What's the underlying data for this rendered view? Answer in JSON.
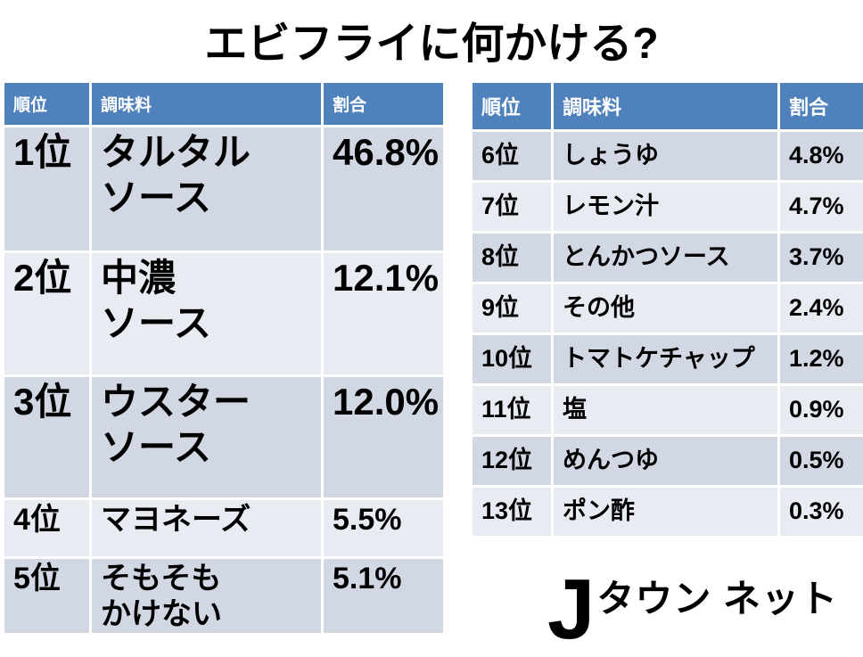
{
  "title": "エビフライに何かける?",
  "colors": {
    "header_bg": "#4f81bd",
    "header_text": "#ffffff",
    "row_dark": "#d2d7e4",
    "row_light": "#e8ebf2",
    "text": "#000000",
    "background": "#ffffff"
  },
  "table_left": {
    "headers": [
      "順位",
      "調味料",
      "割合"
    ],
    "rows": [
      {
        "rank": "1位",
        "item": "タルタル\nソース",
        "pct": "46.8%"
      },
      {
        "rank": "2位",
        "item": "中濃\nソース",
        "pct": "12.1%"
      },
      {
        "rank": "3位",
        "item": "ウスター\nソース",
        "pct": "12.0%"
      },
      {
        "rank": "4位",
        "item": "マヨネーズ",
        "pct": "5.5%"
      },
      {
        "rank": "5位",
        "item": "そもそも\nかけない",
        "pct": "5.1%"
      }
    ]
  },
  "table_right": {
    "headers": [
      "順位",
      "調味料",
      "割合"
    ],
    "rows": [
      {
        "rank": "6位",
        "item": "しょうゆ",
        "pct": "4.8%"
      },
      {
        "rank": "7位",
        "item": "レモン汁",
        "pct": "4.7%"
      },
      {
        "rank": "8位",
        "item": "とんかつソース",
        "pct": "3.7%"
      },
      {
        "rank": "9位",
        "item": "その他",
        "pct": "2.4%"
      },
      {
        "rank": "10位",
        "item": "トマトケチャップ",
        "pct": "1.2%"
      },
      {
        "rank": "11位",
        "item": "塩",
        "pct": "0.9%"
      },
      {
        "rank": "12位",
        "item": "めんつゆ",
        "pct": "0.5%"
      },
      {
        "rank": "13位",
        "item": "ポン酢",
        "pct": "0.3%"
      }
    ]
  },
  "logo": {
    "j": "J",
    "text": "タウン ネット"
  },
  "chart_data": {
    "type": "table",
    "title": "エビフライに何かける?",
    "columns": [
      "順位",
      "調味料",
      "割合"
    ],
    "rows": [
      {
        "rank": 1,
        "condiment": "タルタルソース",
        "percent": 46.8
      },
      {
        "rank": 2,
        "condiment": "中濃ソース",
        "percent": 12.1
      },
      {
        "rank": 3,
        "condiment": "ウスターソース",
        "percent": 12.0
      },
      {
        "rank": 4,
        "condiment": "マヨネーズ",
        "percent": 5.5
      },
      {
        "rank": 5,
        "condiment": "そもそもかけない",
        "percent": 5.1
      },
      {
        "rank": 6,
        "condiment": "しょうゆ",
        "percent": 4.8
      },
      {
        "rank": 7,
        "condiment": "レモン汁",
        "percent": 4.7
      },
      {
        "rank": 8,
        "condiment": "とんかつソース",
        "percent": 3.7
      },
      {
        "rank": 9,
        "condiment": "その他",
        "percent": 2.4
      },
      {
        "rank": 10,
        "condiment": "トマトケチャップ",
        "percent": 1.2
      },
      {
        "rank": 11,
        "condiment": "塩",
        "percent": 0.9
      },
      {
        "rank": 12,
        "condiment": "めんつゆ",
        "percent": 0.5
      },
      {
        "rank": 13,
        "condiment": "ポン酢",
        "percent": 0.3
      }
    ],
    "source_logo": "Jタウンネット",
    "layout": "two side-by-side ranking tables; ranks 1-5 left (large type), ranks 6-13 right"
  }
}
